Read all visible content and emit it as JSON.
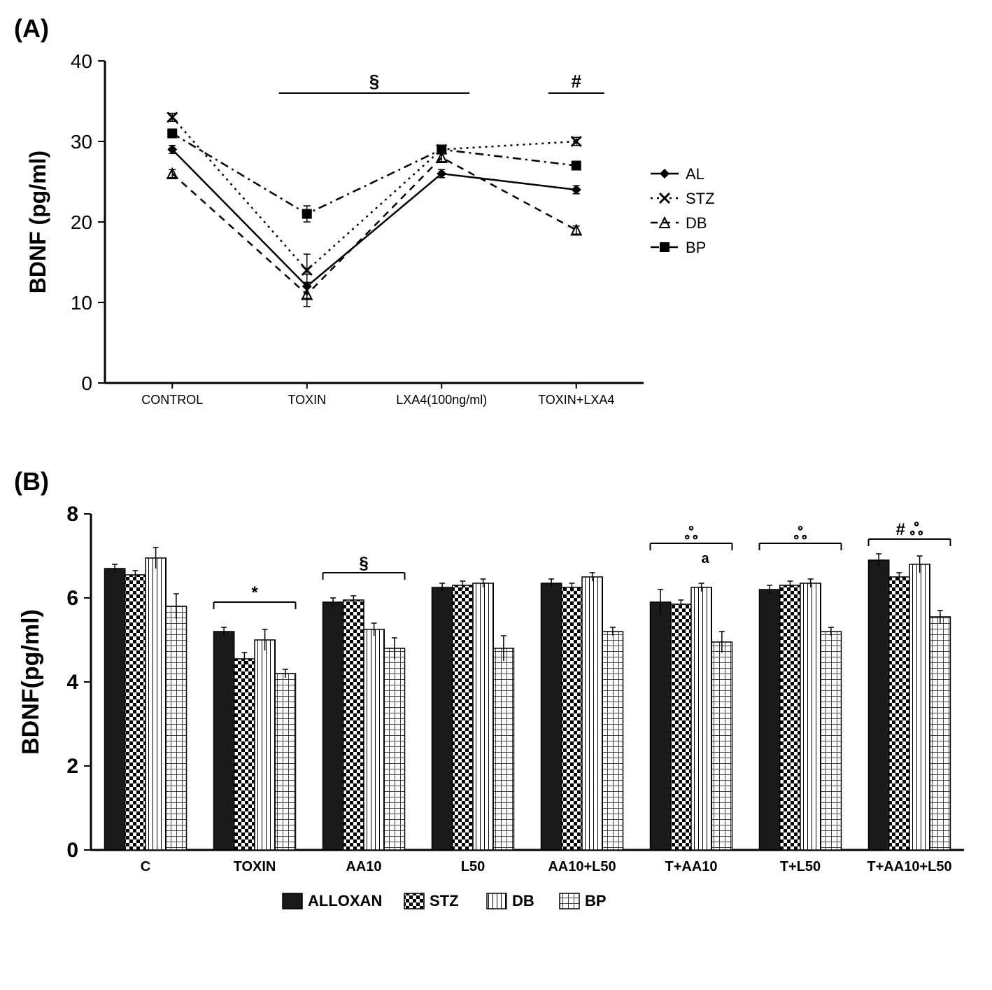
{
  "panelA": {
    "label": "(A)",
    "type": "line",
    "ylabel": "BDNF (pg/ml)",
    "ylabel_fontsize": 32,
    "categories": [
      "CONTROL",
      "TOXIN",
      "LXA4(100ng/ml)",
      "TOXIN+LXA4"
    ],
    "category_fontsize": 18,
    "ylim": [
      0,
      40
    ],
    "ytick_step": 10,
    "ytick_fontsize": 28,
    "legend_fontsize": 22,
    "series": [
      {
        "name": "AL",
        "marker": "diamond",
        "dash": "none",
        "values": [
          29,
          12,
          26,
          24
        ],
        "errors": [
          0.5,
          1.5,
          0.5,
          0.5
        ]
      },
      {
        "name": "STZ",
        "marker": "x",
        "dash": "dot",
        "values": [
          33,
          14,
          29,
          30
        ],
        "errors": [
          0.5,
          2,
          0.5,
          0.5
        ]
      },
      {
        "name": "DB",
        "marker": "triangle",
        "dash": "dash",
        "values": [
          26,
          11,
          28,
          19
        ],
        "errors": [
          0.5,
          1.5,
          0.5,
          0.5
        ]
      },
      {
        "name": "BP",
        "marker": "square",
        "dash": "dashdot",
        "values": [
          31,
          21,
          29,
          27
        ],
        "errors": [
          0.5,
          1,
          0.5,
          0.5
        ]
      }
    ],
    "annotations": [
      {
        "text": "§",
        "x_start": 1,
        "x_end": 2,
        "y": 36
      },
      {
        "text": "#",
        "x_start": 3,
        "x_end": 3,
        "y": 36
      }
    ],
    "line_color": "#000000",
    "background_color": "#ffffff"
  },
  "panelB": {
    "label": "(B)",
    "type": "bar",
    "ylabel": "BDNF(pg/ml)",
    "ylabel_fontsize": 34,
    "categories": [
      "C",
      "TOXIN",
      "AA10",
      "L50",
      "AA10+L50",
      "T+AA10",
      "T+L50",
      "T+AA10+L50"
    ],
    "category_fontsize": 20,
    "ylim": [
      0,
      8
    ],
    "ytick_step": 2,
    "ytick_fontsize": 30,
    "legend_fontsize": 22,
    "series": [
      {
        "name": "ALLOXAN",
        "pattern": "solid",
        "values": [
          6.7,
          5.2,
          5.9,
          6.25,
          6.35,
          5.9,
          6.2,
          6.9
        ],
        "errors": [
          0.1,
          0.1,
          0.1,
          0.1,
          0.1,
          0.3,
          0.1,
          0.15
        ]
      },
      {
        "name": "STZ",
        "pattern": "checker",
        "values": [
          6.55,
          4.55,
          5.95,
          6.3,
          6.25,
          5.85,
          6.3,
          6.5
        ],
        "errors": [
          0.1,
          0.15,
          0.1,
          0.1,
          0.1,
          0.1,
          0.1,
          0.1
        ]
      },
      {
        "name": "DB",
        "pattern": "vlines",
        "values": [
          6.95,
          5.0,
          5.25,
          6.35,
          6.5,
          6.25,
          6.35,
          6.8
        ],
        "errors": [
          0.25,
          0.25,
          0.15,
          0.1,
          0.1,
          0.1,
          0.1,
          0.2
        ]
      },
      {
        "name": "BP",
        "pattern": "grid",
        "values": [
          5.8,
          4.2,
          4.8,
          4.8,
          5.2,
          4.95,
          5.2,
          5.55
        ],
        "errors": [
          0.3,
          0.1,
          0.25,
          0.3,
          0.1,
          0.25,
          0.1,
          0.15
        ]
      }
    ],
    "annotations": [
      {
        "text": "*",
        "group": 1,
        "y": 5.9
      },
      {
        "text": "§",
        "group": 2,
        "y": 6.6
      },
      {
        "text": "ஃ",
        "group": 5,
        "y": 7.3,
        "extra": "a"
      },
      {
        "text": "ஃ",
        "group": 6,
        "y": 7.3
      },
      {
        "text": "# ஃ",
        "group": 7,
        "y": 7.4
      }
    ],
    "bar_border": "#000000",
    "background_color": "#ffffff"
  }
}
